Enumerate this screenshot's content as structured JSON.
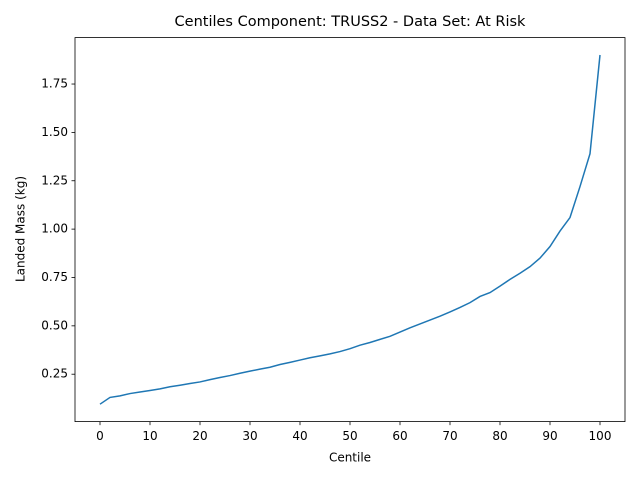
{
  "chart_data": {
    "type": "line",
    "title": "Centiles Component: TRUSS2 - Data Set: At Risk",
    "x_label": "Centile",
    "y_label": "Landed Mass (kg)",
    "x": [
      0,
      2,
      4,
      6,
      8,
      10,
      12,
      14,
      16,
      18,
      20,
      22,
      24,
      26,
      28,
      30,
      32,
      34,
      36,
      38,
      40,
      42,
      44,
      46,
      48,
      50,
      52,
      54,
      56,
      58,
      60,
      62,
      64,
      66,
      68,
      70,
      72,
      74,
      76,
      78,
      80,
      82,
      84,
      86,
      88,
      90,
      92,
      94,
      96,
      98,
      100
    ],
    "values": [
      0.095,
      0.13,
      0.138,
      0.15,
      0.158,
      0.166,
      0.174,
      0.185,
      0.193,
      0.202,
      0.21,
      0.222,
      0.233,
      0.243,
      0.255,
      0.266,
      0.276,
      0.286,
      0.3,
      0.311,
      0.323,
      0.335,
      0.345,
      0.355,
      0.367,
      0.382,
      0.4,
      0.414,
      0.43,
      0.446,
      0.468,
      0.49,
      0.51,
      0.53,
      0.55,
      0.572,
      0.595,
      0.62,
      0.652,
      0.672,
      0.705,
      0.74,
      0.772,
      0.806,
      0.85,
      0.91,
      0.99,
      1.06,
      1.22,
      1.39,
      1.9
    ],
    "color": "#1f77b4",
    "xlim": [
      -5,
      105
    ],
    "ylim": [
      0.005,
      1.99
    ],
    "xticks": [
      0,
      10,
      20,
      30,
      40,
      50,
      60,
      70,
      80,
      90,
      100
    ],
    "yticks": [
      0.25,
      {
        "value": 0.5,
        "label": "0.50"
      },
      0.75,
      {
        "value": 1,
        "label": "1.00"
      },
      1.25,
      {
        "value": 1.5,
        "label": "1.50"
      },
      1.75
    ],
    "grid": false
  }
}
